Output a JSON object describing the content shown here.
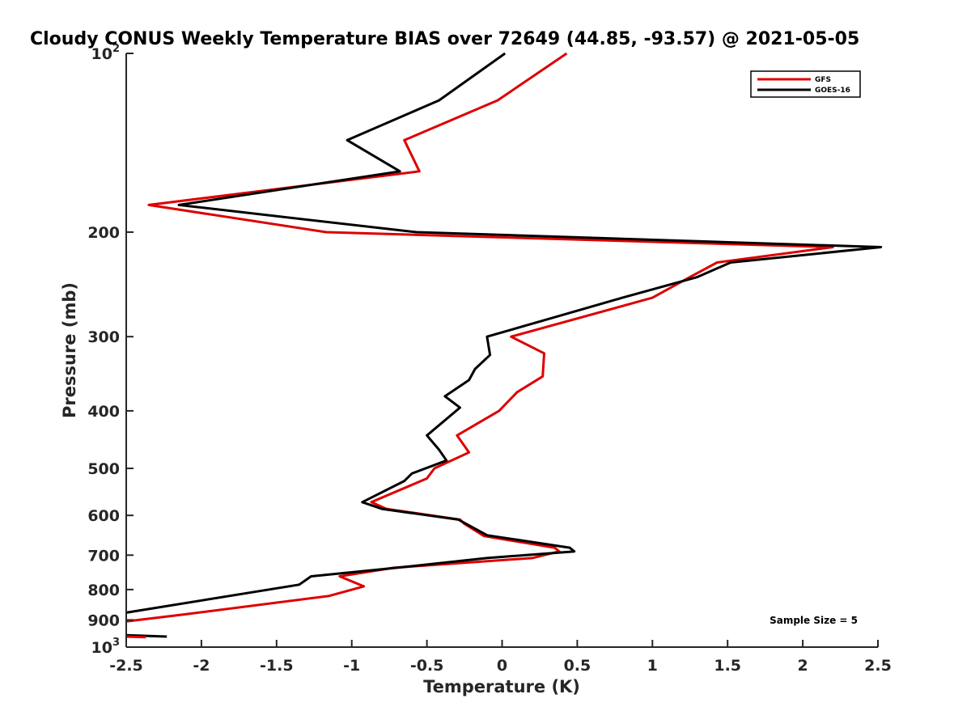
{
  "chart_data": {
    "type": "line",
    "title": "Cloudy CONUS Weekly Temperature BIAS over 72649 (44.85, -93.57) @ 2021-05-05",
    "xlabel": "Temperature (K)",
    "ylabel": "Pressure (mb)",
    "xlim": [
      -2.5,
      2.5
    ],
    "ylim": [
      100,
      1000
    ],
    "y_scale": "log",
    "y_reversed": true,
    "x_ticks": [
      "-2.5",
      "-2",
      "-1.5",
      "-1",
      "-0.5",
      "0",
      "0.5",
      "1",
      "1.5",
      "2",
      "2.5"
    ],
    "y_ticks": [
      {
        "value": 100,
        "base": "10",
        "exp": "2"
      },
      {
        "value": 200,
        "label": "200"
      },
      {
        "value": 300,
        "label": "300"
      },
      {
        "value": 400,
        "label": "400"
      },
      {
        "value": 500,
        "label": "500"
      },
      {
        "value": 600,
        "label": "600"
      },
      {
        "value": 700,
        "label": "700"
      },
      {
        "value": 800,
        "label": "800"
      },
      {
        "value": 900,
        "label": "900"
      },
      {
        "value": 1000,
        "base": "10",
        "exp": "3"
      }
    ],
    "grid": false,
    "legend_position": "top-right",
    "annotation": "Sample Size = 5",
    "series": [
      {
        "name": "GFS",
        "color": "#dd0000",
        "points": [
          [
            0.43,
            100
          ],
          [
            -0.03,
            120
          ],
          [
            -0.65,
            140
          ],
          [
            -0.55,
            158
          ],
          [
            -2.35,
            180
          ],
          [
            -1.17,
            200
          ],
          [
            2.2,
            212
          ],
          [
            1.43,
            225
          ],
          [
            1.25,
            238
          ],
          [
            1.0,
            258
          ],
          [
            0.06,
            300
          ],
          [
            0.28,
            320
          ],
          [
            0.27,
            350
          ],
          [
            0.1,
            372
          ],
          [
            -0.02,
            400
          ],
          [
            -0.3,
            440
          ],
          [
            -0.22,
            470
          ],
          [
            -0.45,
            500
          ],
          [
            -0.5,
            520
          ],
          [
            -0.87,
            570
          ],
          [
            -0.77,
            585
          ],
          [
            -0.28,
            610
          ],
          [
            -0.25,
            620
          ],
          [
            -0.12,
            650
          ],
          [
            0.35,
            680
          ],
          [
            0.38,
            690
          ],
          [
            0.2,
            708
          ],
          [
            -0.72,
            735
          ],
          [
            -1.08,
            760
          ],
          [
            -0.92,
            790
          ],
          [
            -1.15,
            820
          ],
          [
            -2.1,
            880
          ],
          [
            -2.5,
            905
          ]
        ]
      },
      {
        "name": "GOES-16",
        "color": "#000000",
        "points": [
          [
            0.02,
            100
          ],
          [
            -0.42,
            120
          ],
          [
            -1.03,
            140
          ],
          [
            -0.68,
            158
          ],
          [
            -2.15,
            180
          ],
          [
            -0.57,
            200
          ],
          [
            2.52,
            212
          ],
          [
            1.52,
            225
          ],
          [
            1.3,
            238
          ],
          [
            0.8,
            258
          ],
          [
            -0.1,
            300
          ],
          [
            -0.08,
            322
          ],
          [
            -0.18,
            340
          ],
          [
            -0.22,
            355
          ],
          [
            -0.38,
            378
          ],
          [
            -0.28,
            395
          ],
          [
            -0.5,
            440
          ],
          [
            -0.42,
            465
          ],
          [
            -0.37,
            485
          ],
          [
            -0.6,
            510
          ],
          [
            -0.65,
            525
          ],
          [
            -0.93,
            570
          ],
          [
            -0.8,
            585
          ],
          [
            -0.29,
            610
          ],
          [
            -0.1,
            648
          ],
          [
            0.45,
            680
          ],
          [
            0.48,
            690
          ],
          [
            -0.1,
            708
          ],
          [
            -0.7,
            735
          ],
          [
            -1.27,
            760
          ],
          [
            -1.35,
            785
          ],
          [
            -2.5,
            875
          ]
        ]
      },
      {
        "name": "",
        "color": "#000000",
        "points": [
          [
            -2.5,
            955
          ],
          [
            -2.23,
            960
          ]
        ]
      },
      {
        "name": "",
        "color": "#dd0000",
        "points": [
          [
            -2.5,
            960
          ],
          [
            -2.37,
            962
          ]
        ]
      }
    ]
  }
}
